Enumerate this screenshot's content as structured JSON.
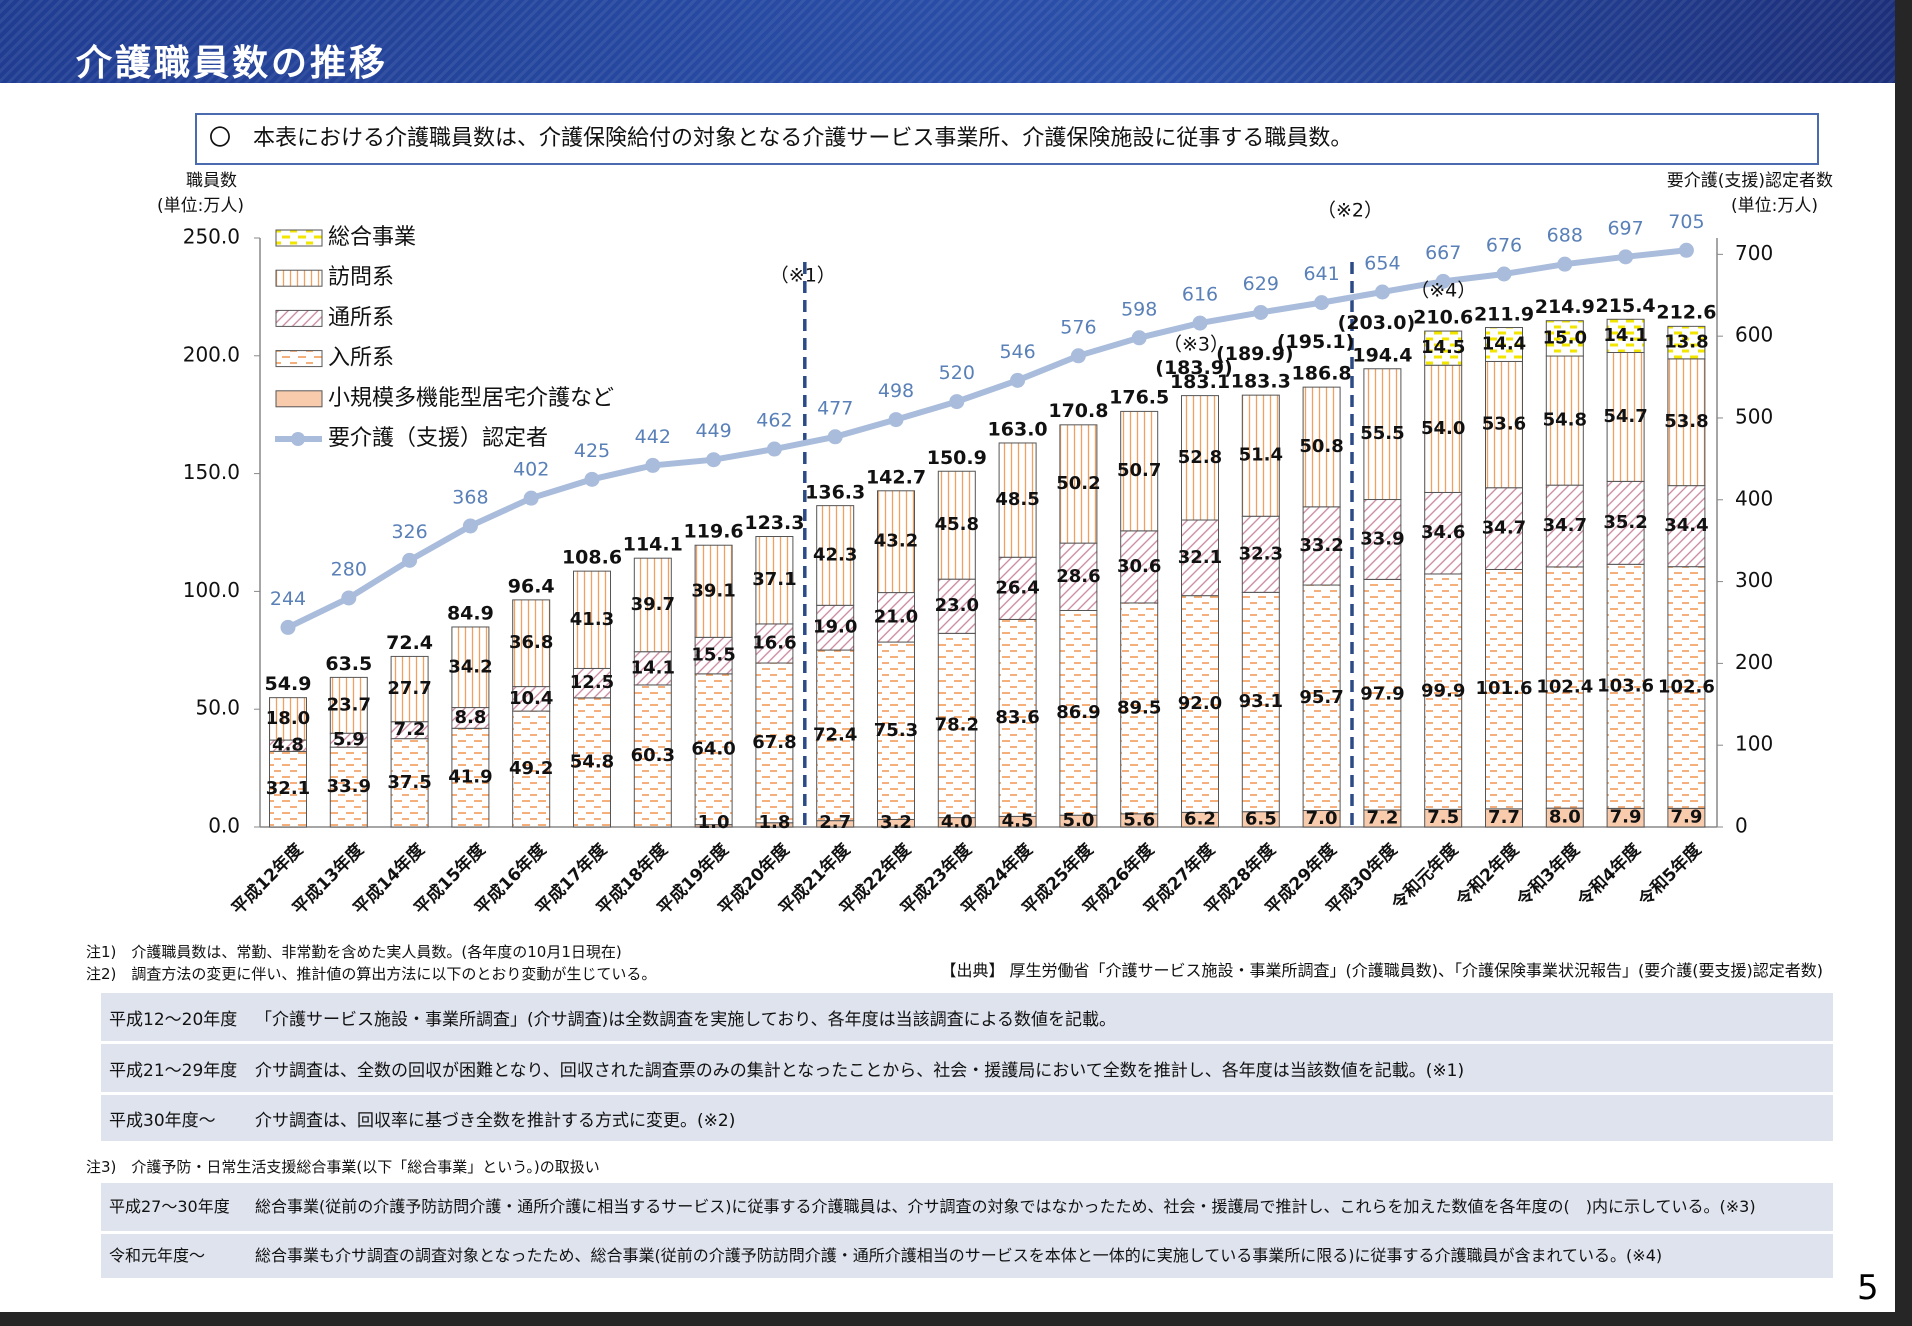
{
  "header": {
    "title": "介護職員数の推移"
  },
  "note_box": "〇　本表における介護職員数は、介護保険給付の対象となる介護サービス事業所、介護保険施設に従事する職員数。",
  "chart_data": {
    "type": "bar",
    "stacked": true,
    "y_axis_label": [
      "職員数",
      "(単位:万人)"
    ],
    "y2_axis_label": [
      "要介護(支援)認定者数",
      "(単位:万人)"
    ],
    "categories": [
      "平成12年度",
      "平成13年度",
      "平成14年度",
      "平成15年度",
      "平成16年度",
      "平成17年度",
      "平成18年度",
      "平成19年度",
      "平成20年度",
      "平成21年度",
      "平成22年度",
      "平成23年度",
      "平成24年度",
      "平成25年度",
      "平成26年度",
      "平成27年度",
      "平成28年度",
      "平成29年度",
      "平成30年度",
      "令和元年度",
      "令和2年度",
      "令和3年度",
      "令和4年度",
      "令和5年度"
    ],
    "series": [
      {
        "name": "小規模多機能型居宅介護など",
        "color": "#f8cbad",
        "pattern": "solid",
        "values": [
          null,
          null,
          null,
          null,
          null,
          null,
          null,
          1.0,
          1.8,
          2.7,
          3.2,
          4.0,
          4.5,
          5.0,
          5.6,
          6.2,
          6.5,
          7.0,
          7.2,
          7.5,
          7.7,
          8.0,
          7.9,
          7.9
        ],
        "value_labels": [
          null,
          null,
          null,
          null,
          null,
          null,
          null,
          "1.0",
          "1.8",
          "2.7",
          "3.2",
          "4.0",
          "4.5",
          "5.0",
          "5.6",
          "6.2",
          "6.5",
          "7.0",
          "7.2",
          "7.5",
          "7.7",
          "8.0",
          "7.9",
          "7.9"
        ]
      },
      {
        "name": "入所系",
        "color": "#f19b5a",
        "pattern": "dash",
        "values": [
          32.1,
          33.9,
          37.5,
          41.9,
          49.2,
          54.8,
          60.3,
          64.0,
          67.8,
          72.4,
          75.3,
          78.2,
          83.6,
          86.9,
          89.5,
          92.0,
          93.1,
          95.7,
          97.9,
          99.9,
          101.6,
          102.4,
          103.6,
          102.6
        ],
        "value_labels": [
          "32.1",
          "33.9",
          "37.5",
          "41.9",
          "49.2",
          "54.8",
          "60.3",
          "64.0",
          "67.8",
          "72.4",
          "75.3",
          "78.2",
          "83.6",
          "86.9",
          "89.5",
          "92.0",
          "93.1",
          "95.7",
          "97.9",
          "99.9",
          "101.6",
          "102.4",
          "103.6",
          "102.6"
        ]
      },
      {
        "name": "通所系",
        "color": "#c9859b",
        "pattern": "hatch",
        "values": [
          4.8,
          5.9,
          7.2,
          8.8,
          10.4,
          12.5,
          14.1,
          15.5,
          16.6,
          19.0,
          21.0,
          23.0,
          26.4,
          28.6,
          30.6,
          32.1,
          32.3,
          33.2,
          33.9,
          34.6,
          34.7,
          34.7,
          35.2,
          34.4
        ],
        "value_labels": [
          "4.8",
          "5.9",
          "7.2",
          "8.8",
          "10.4",
          "12.5",
          "14.1",
          "15.5",
          "16.6",
          "19.0",
          "21.0",
          "23.0",
          "26.4",
          "28.6",
          "30.6",
          "32.1",
          "32.3",
          "33.2",
          "33.9",
          "34.6",
          "34.7",
          "34.7",
          "35.2",
          "34.4"
        ]
      },
      {
        "name": "訪問系",
        "color": "#f0a060",
        "pattern": "vline",
        "values": [
          18.0,
          23.7,
          27.7,
          34.2,
          36.8,
          41.3,
          39.7,
          39.1,
          37.1,
          42.3,
          43.2,
          45.8,
          48.5,
          50.2,
          50.7,
          52.8,
          51.4,
          50.8,
          55.5,
          54.0,
          53.6,
          54.8,
          54.7,
          53.8
        ],
        "value_labels": [
          "18.0",
          "23.7",
          "27.7",
          "34.2",
          "36.8",
          "41.3",
          "39.7",
          "39.1",
          "37.1",
          "42.3",
          "43.2",
          "45.8",
          "48.5",
          "50.2",
          "50.7",
          "52.8",
          "51.4",
          "50.8",
          "55.5",
          "54.0",
          "53.6",
          "54.8",
          "54.7",
          "53.8"
        ]
      },
      {
        "name": "総合事業",
        "color": "#f2e600",
        "pattern": "dash",
        "values": [
          null,
          null,
          null,
          null,
          null,
          null,
          null,
          null,
          null,
          null,
          null,
          null,
          null,
          null,
          null,
          null,
          null,
          null,
          null,
          14.5,
          14.4,
          15.0,
          14.1,
          13.8
        ],
        "value_labels": [
          null,
          null,
          null,
          null,
          null,
          null,
          null,
          null,
          null,
          null,
          null,
          null,
          null,
          null,
          null,
          null,
          null,
          null,
          null,
          "14.5",
          "14.4",
          "15.0",
          "14.1",
          "13.8"
        ]
      },
      {
        "name": "要介護（支援）認定者",
        "type": "line",
        "axis": "y2",
        "color": "#a9bcdb",
        "label_color": "#5a80b8",
        "values": [
          244,
          280,
          326,
          368,
          402,
          425,
          442,
          449,
          462,
          477,
          498,
          520,
          546,
          576,
          598,
          616,
          629,
          641,
          654,
          667,
          676,
          688,
          697,
          705
        ]
      }
    ],
    "totals": {
      "values": [
        54.9,
        63.5,
        72.4,
        84.9,
        96.4,
        108.6,
        114.1,
        119.6,
        123.3,
        136.3,
        142.7,
        150.9,
        163.0,
        170.8,
        176.5,
        183.1,
        183.3,
        186.8,
        194.4,
        210.6,
        211.9,
        214.9,
        215.4,
        212.6
      ],
      "value_labels": [
        "54.9",
        "63.5",
        "72.4",
        "84.9",
        "96.4",
        "108.6",
        "114.1",
        "119.6",
        "123.3",
        "136.3",
        "142.7",
        "150.9",
        "163.0",
        "170.8",
        "176.5",
        "183.1",
        "183.3",
        "186.8",
        "194.4",
        "210.6",
        "211.9",
        "214.9",
        "215.4",
        "212.6"
      ]
    },
    "adjusted_totals": {
      "values": [
        null,
        null,
        null,
        null,
        null,
        null,
        null,
        null,
        null,
        null,
        null,
        null,
        null,
        null,
        null,
        183.9,
        189.9,
        195.1,
        203.0,
        null,
        null,
        null,
        null,
        null
      ],
      "value_labels": [
        null,
        null,
        null,
        null,
        null,
        null,
        null,
        null,
        null,
        null,
        null,
        null,
        null,
        null,
        null,
        "(183.9)",
        "(189.9)",
        "(195.1)",
        "(203.0)",
        null,
        null,
        null,
        null,
        null
      ]
    },
    "ylim": [
      0,
      250
    ],
    "yticks": [
      {
        "value": 0,
        "label": "0.0"
      },
      {
        "value": 50,
        "label": "50.0"
      },
      {
        "value": 100,
        "label": "100.0"
      },
      {
        "value": 150,
        "label": "150.0"
      },
      {
        "value": 200,
        "label": "200.0"
      },
      {
        "value": 250,
        "label": "250.0"
      }
    ],
    "y2lim": [
      0,
      720
    ],
    "y2ticks": [
      0,
      100,
      200,
      300,
      400,
      500,
      600,
      700
    ],
    "legend": "upper left",
    "annotations": [
      "（※1）",
      "（※2）",
      "（※3）",
      "（※4）"
    ]
  },
  "notes": [
    "注1)　介護職員数は、常勤、非常勤を含めた実人員数。(各年度の10月1日現在)",
    "注2)　調査方法の変更に伴い、推計値の算出方法に以下のとおり変動が生じている。"
  ],
  "source": "【出典】 厚生労働省「介護サービス施設・事業所調査」(介護職員数)、「介護保険事業状況報告」(要介護(要支援)認定者数)",
  "table1": {
    "rows": [
      [
        "平成12～20年度",
        "「介護サービス施設・事業所調査」(介サ調査)は全数調査を実施しており、各年度は当該調査による数値を記載。"
      ],
      [
        "平成21～29年度",
        "介サ調査は、全数の回収が困難となり、回収された調査票のみの集計となったことから、社会・援護局において全数を推計し、各年度は当該数値を記載。(※1)"
      ],
      [
        "平成30年度～",
        "介サ調査は、回収率に基づき全数を推計する方式に変更。(※2)"
      ]
    ]
  },
  "note3": "注3)　介護予防・日常生活支援総合事業(以下「総合事業」という。)の取扱い",
  "table2": {
    "rows": [
      [
        "平成27～30年度",
        "総合事業(従前の介護予防訪問介護・通所介護に相当するサービス)に従事する介護職員は、介サ調査の対象ではなかったため、社会・援護局で推計し、これらを加えた数値を各年度の(　)内に示している。(※3)"
      ],
      [
        "令和元年度～",
        "総合事業も介サ調査の調査対象となったため、総合事業(従前の介護予防訪問介護・通所介護相当のサービスを本体と一体的に実施している事業所に限る)に従事する介護職員が含まれている。(※4)"
      ]
    ]
  },
  "page_number": "5"
}
